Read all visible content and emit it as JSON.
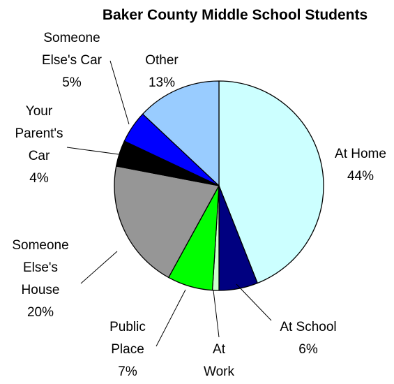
{
  "chart_data": {
    "type": "pie",
    "title": "Baker County Middle School Students",
    "legend": "none",
    "slices": [
      {
        "label": "At Home",
        "value": 44,
        "value_label": "44%",
        "color": "#ccffff"
      },
      {
        "label": "At School",
        "value": 6,
        "value_label": "6%",
        "color": "#000080"
      },
      {
        "label": "At Work",
        "value": 1,
        "value_label": "1%",
        "color": "#ccffcc"
      },
      {
        "label": "Public Place",
        "value": 7,
        "value_label": "7%",
        "color": "#00ff00"
      },
      {
        "label": "Someone Else's House",
        "value": 20,
        "value_label": "20%",
        "color": "#969696"
      },
      {
        "label": "Your Parent's Car",
        "value": 4,
        "value_label": "4%",
        "color": "#000000"
      },
      {
        "label": "Someone Else's Car",
        "value": 5,
        "value_label": "5%",
        "color": "#0000ff"
      },
      {
        "label": "Other",
        "value": 13,
        "value_label": "13%",
        "color": "#99ccff"
      }
    ]
  }
}
